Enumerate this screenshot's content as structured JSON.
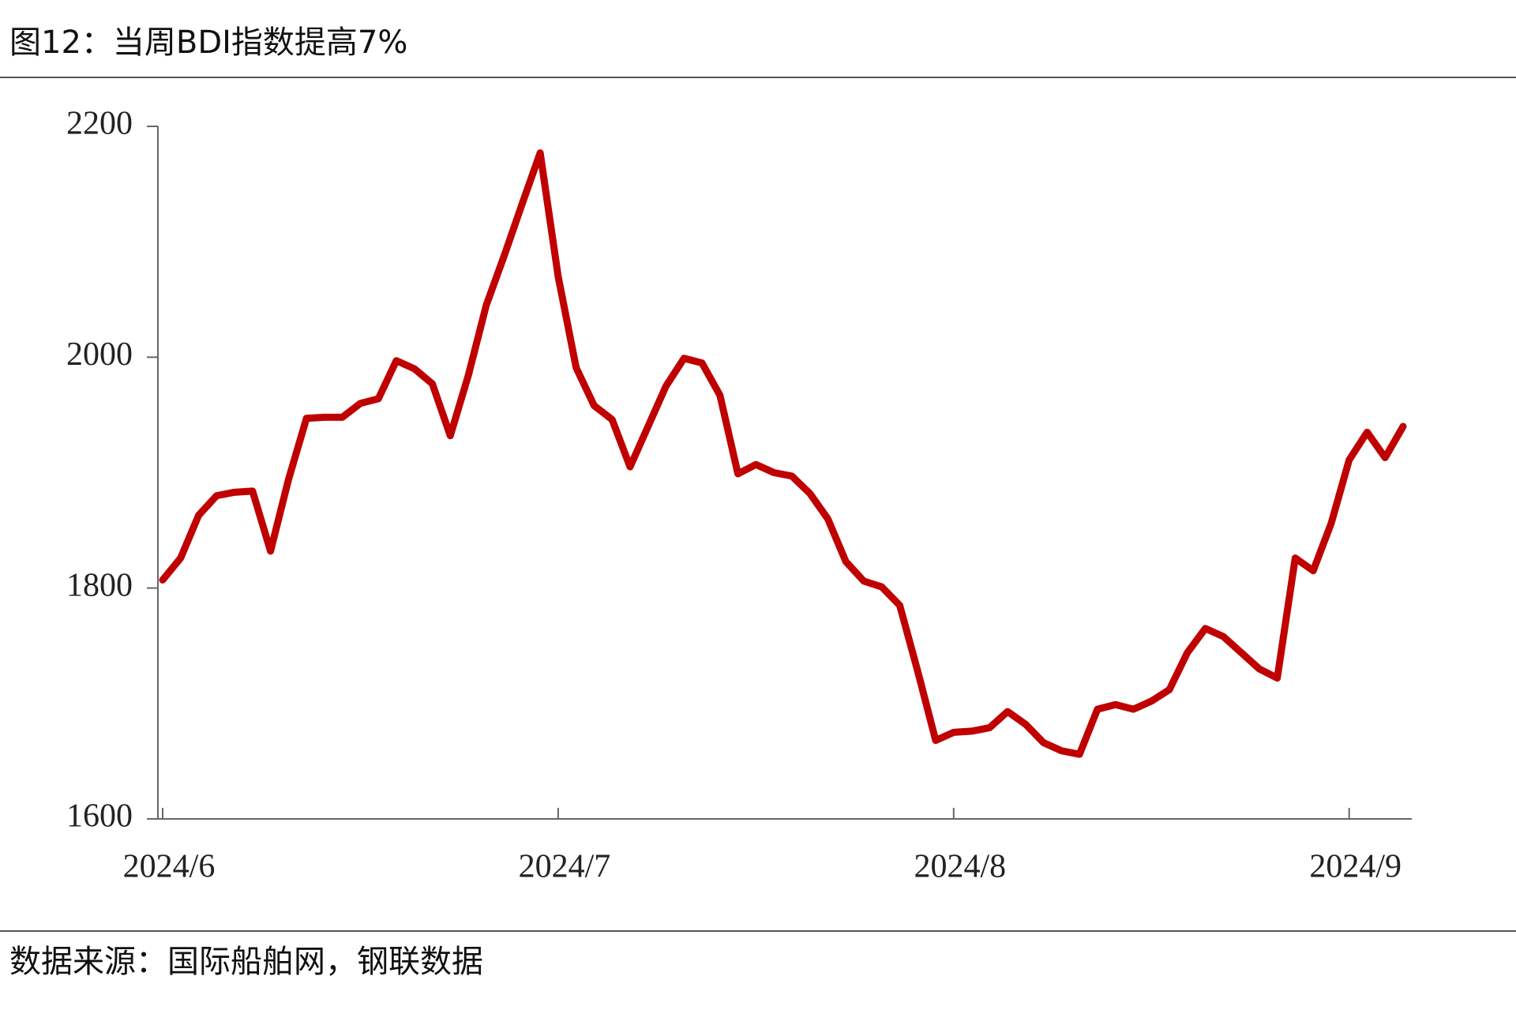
{
  "title": "图12：当周BDI指数提高7%",
  "source": "数据来源：国际船舶网，钢联数据",
  "chart_data": {
    "type": "line",
    "categories": [
      "2024/6",
      null,
      null,
      null,
      null,
      null,
      null,
      null,
      null,
      null,
      null,
      null,
      null,
      null,
      null,
      null,
      null,
      null,
      null,
      null,
      null,
      null,
      "2024/7",
      null,
      null,
      null,
      null,
      null,
      null,
      null,
      null,
      null,
      null,
      null,
      null,
      null,
      null,
      null,
      null,
      null,
      null,
      null,
      null,
      null,
      "2024/8",
      null,
      null,
      null,
      null,
      null,
      null,
      null,
      null,
      null,
      null,
      null,
      null,
      null,
      null,
      null,
      null,
      null,
      null,
      null,
      null,
      null,
      "2024/9",
      null,
      null,
      null
    ],
    "series": [
      {
        "name": "BDI",
        "color": "#c00000",
        "values": [
          1807,
          1826,
          1863,
          1880,
          1883,
          1884,
          1832,
          1894,
          1947,
          1948,
          1948,
          1960,
          1964,
          1997,
          1990,
          1977,
          1932,
          1984,
          2045,
          2088,
          2133,
          2177,
          2070,
          1991,
          1958,
          1946,
          1905,
          1940,
          1975,
          1999,
          1995,
          1967,
          1899,
          1907,
          1900,
          1897,
          1882,
          1860,
          1823,
          1806,
          1801,
          1785,
          1728,
          1668,
          1675,
          1676,
          1679,
          1693,
          1682,
          1666,
          1659,
          1656,
          1695,
          1699,
          1695,
          1702,
          1712,
          1744,
          1765,
          1758,
          1744,
          1730,
          1722,
          1826,
          1815,
          1856,
          1911,
          1935,
          1913,
          1940
        ]
      }
    ],
    "ylim": [
      1600,
      2200
    ],
    "yticks": [
      1600,
      1800,
      2000,
      2200
    ],
    "grid": false
  }
}
